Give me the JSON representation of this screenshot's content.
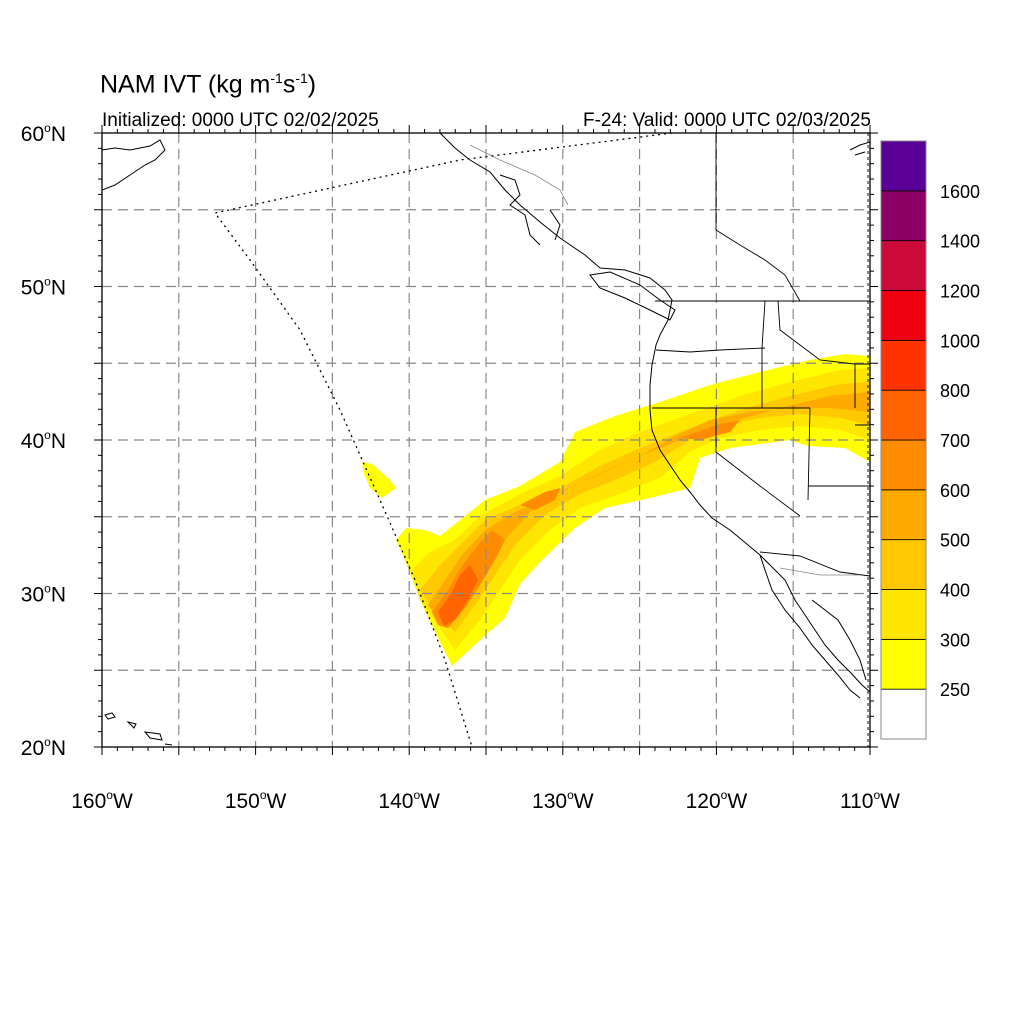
{
  "header": {
    "title_main": "NAM IVT (kg m",
    "title_sup1": "-1",
    "title_mid": "s",
    "title_sup2": "-1",
    "title_end": ")",
    "initialized": "Initialized: 0000 UTC 02/02/2025",
    "valid": "F-24: Valid: 0000 UTC 02/03/2025"
  },
  "axes": {
    "lon_range": [
      -160,
      -110
    ],
    "lat_range": [
      20,
      60
    ],
    "lon_labels": [
      {
        "value": -160,
        "deg": "160",
        "hemi": "W"
      },
      {
        "value": -150,
        "deg": "150",
        "hemi": "W"
      },
      {
        "value": -140,
        "deg": "140",
        "hemi": "W"
      },
      {
        "value": -130,
        "deg": "130",
        "hemi": "W"
      },
      {
        "value": -120,
        "deg": "120",
        "hemi": "W"
      },
      {
        "value": -110,
        "deg": "110",
        "hemi": "W"
      }
    ],
    "lat_labels": [
      {
        "value": 60,
        "deg": "60",
        "hemi": "N"
      },
      {
        "value": 50,
        "deg": "50",
        "hemi": "N"
      },
      {
        "value": 40,
        "deg": "40",
        "hemi": "N"
      },
      {
        "value": 30,
        "deg": "30",
        "hemi": "N"
      },
      {
        "value": 20,
        "deg": "20",
        "hemi": "N"
      }
    ],
    "grid_lon": [
      -155,
      -150,
      -145,
      -140,
      -135,
      -130,
      -125,
      -120,
      -115
    ],
    "grid_lat": [
      25,
      30,
      35,
      40,
      45,
      50,
      55
    ]
  },
  "colorbar": {
    "levels": [
      {
        "color": "#ffffff",
        "label": "250"
      },
      {
        "color": "#ffff00",
        "label": "300"
      },
      {
        "color": "#ffe600",
        "label": "400"
      },
      {
        "color": "#ffc800",
        "label": "500"
      },
      {
        "color": "#ffaa00",
        "label": "600"
      },
      {
        "color": "#ff8c00",
        "label": "700"
      },
      {
        "color": "#ff6400",
        "label": "800"
      },
      {
        "color": "#ff3200",
        "label": "1000"
      },
      {
        "color": "#ee0011",
        "label": "1200"
      },
      {
        "color": "#cc0a3a",
        "label": "1400"
      },
      {
        "color": "#8c0066",
        "label": "1600"
      },
      {
        "color": "#5a0096",
        "label": ""
      }
    ]
  }
}
